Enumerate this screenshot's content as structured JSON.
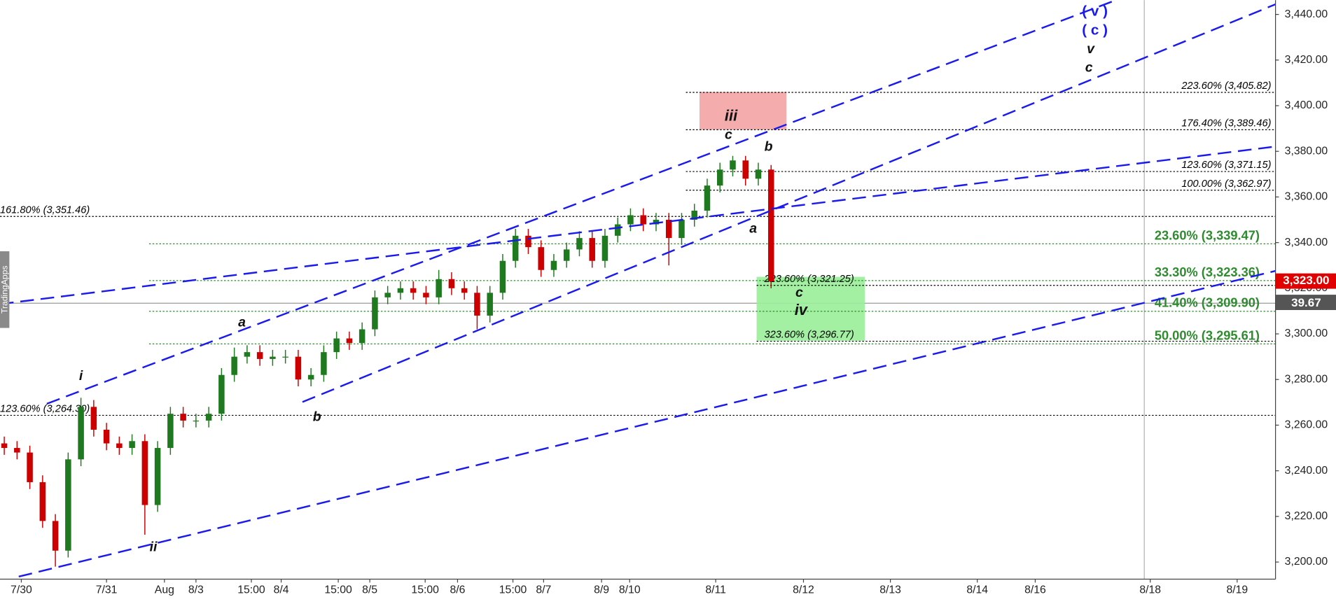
{
  "chart_data": {
    "type": "candlestick",
    "up_color": "#1f7a1f",
    "down_color": "#cc0000",
    "open": [
      3252,
      3250,
      3248,
      3235,
      3218,
      3205,
      3245,
      3268,
      3258,
      3252,
      3250,
      3253,
      3225,
      3250,
      3265,
      3262,
      3262,
      3265,
      3282,
      3290,
      3292,
      3289,
      3290,
      3290,
      3280,
      3282,
      3292,
      3298,
      3296,
      3302,
      3316,
      3318,
      3320,
      3318,
      3316,
      3324,
      3320,
      3318,
      3308,
      3318,
      3332,
      3343,
      3338,
      3328,
      3332,
      3337,
      3342,
      3332,
      3343,
      3348,
      3352,
      3348,
      3350,
      3342,
      3350,
      3354,
      3365,
      3372,
      3376,
      3368,
      3372
    ],
    "high": [
      3255,
      3253,
      3251,
      3238,
      3221,
      3248,
      3272,
      3271,
      3261,
      3255,
      3256,
      3256,
      3253,
      3268,
      3268,
      3265,
      3268,
      3285,
      3294,
      3295,
      3295,
      3293,
      3293,
      3293,
      3285,
      3295,
      3301,
      3301,
      3305,
      3319,
      3321,
      3323,
      3323,
      3321,
      3328,
      3327,
      3323,
      3321,
      3321,
      3335,
      3346,
      3346,
      3341,
      3335,
      3340,
      3345,
      3345,
      3346,
      3351,
      3355,
      3355,
      3353,
      3353,
      3353,
      3357,
      3368,
      3375,
      3378,
      3378,
      3375,
      3374
    ],
    "low": [
      3247,
      3245,
      3232,
      3215,
      3198,
      3202,
      3242,
      3255,
      3249,
      3247,
      3247,
      3212,
      3222,
      3247,
      3259,
      3259,
      3259,
      3262,
      3279,
      3287,
      3286,
      3286,
      3287,
      3277,
      3277,
      3279,
      3289,
      3293,
      3293,
      3299,
      3313,
      3315,
      3315,
      3313,
      3313,
      3317,
      3315,
      3302,
      3305,
      3315,
      3329,
      3335,
      3325,
      3325,
      3329,
      3334,
      3329,
      3329,
      3340,
      3345,
      3345,
      3345,
      3330,
      3339,
      3347,
      3351,
      3362,
      3369,
      3365,
      3365,
      3320
    ],
    "close": [
      3250,
      3248,
      3235,
      3218,
      3205,
      3245,
      3268,
      3258,
      3252,
      3250,
      3253,
      3225,
      3250,
      3265,
      3262,
      3262,
      3265,
      3282,
      3290,
      3292,
      3289,
      3290,
      3290,
      3280,
      3282,
      3292,
      3298,
      3296,
      3302,
      3316,
      3318,
      3320,
      3318,
      3316,
      3324,
      3320,
      3318,
      3308,
      3318,
      3332,
      3343,
      3338,
      3328,
      3332,
      3337,
      3342,
      3332,
      3343,
      3348,
      3352,
      3348,
      3350,
      3342,
      3350,
      3354,
      3365,
      3372,
      3376,
      3368,
      3372,
      3323
    ],
    "x_labels": [
      "7/30",
      "7/31",
      "Aug",
      "8/3",
      "15:00",
      "8/4",
      "15:00",
      "8/5",
      "15:00",
      "8/6",
      "15:00",
      "8/7",
      "8/9",
      "8/10",
      "8/11",
      "8/12",
      "8/13",
      "8/14",
      "8/16",
      "8/18",
      "8/19"
    ],
    "ylim": [
      3192.5,
      3446.3
    ],
    "yticks": [
      {
        "value": 3200,
        "label": "3,200.00"
      },
      {
        "value": 3220,
        "label": "3,220.00"
      },
      {
        "value": 3240,
        "label": "3,240.00"
      },
      {
        "value": 3260,
        "label": "3,260.00"
      },
      {
        "value": 3280,
        "label": "3,280.00"
      },
      {
        "value": 3300,
        "label": "3,300.00"
      },
      {
        "value": 3320,
        "label": "3,320.00"
      },
      {
        "value": 3340,
        "label": "3,340.00"
      },
      {
        "value": 3360,
        "label": "3,360.00"
      },
      {
        "value": 3380,
        "label": "3,380.00"
      },
      {
        "value": 3400,
        "label": "3,400.00"
      },
      {
        "value": 3420,
        "label": "3,420.00"
      },
      {
        "value": 3440,
        "label": "3,440.00"
      }
    ],
    "level_color": "#000000",
    "green_level_color": "#2e8b2e",
    "levels_right": [
      {
        "value": 3405.82,
        "label": "223.60% (3,405.82)"
      },
      {
        "value": 3389.46,
        "label": "176.40% (3,389.46)"
      },
      {
        "value": 3371.15,
        "label": "123.60% (3,371.15)"
      },
      {
        "value": 3362.97,
        "label": "100.00% (3,362.97)"
      }
    ],
    "levels_left": [
      {
        "value": 3351.46,
        "label": "161.80% (3,351.46)"
      },
      {
        "value": 3264.3,
        "label": "123.60% (3,264.30)"
      }
    ],
    "levels_box": [
      {
        "value": 3321.25,
        "label": "223.60% (3,321.25)"
      },
      {
        "value": 3296.77,
        "label": "323.60% (3,296.77)"
      }
    ],
    "levels_green": [
      {
        "value": 3339.47,
        "label": "23.60% (3,339.47)"
      },
      {
        "value": 3323.36,
        "label": "33.30% (3,323.36)"
      },
      {
        "value": 3309.9,
        "label": "41.40% (3,309.90)"
      },
      {
        "value": 3295.61,
        "label": "50.00% (3,295.61)"
      }
    ],
    "wave_labels": [
      "i",
      "ii",
      "a",
      "b",
      "iii",
      "c",
      "b",
      "a",
      "c",
      "iv",
      "v",
      "c"
    ],
    "wave_labels_blue": [
      "( v )",
      "( c )"
    ],
    "last_price": {
      "value": 3323.0,
      "label": "3,323.00"
    },
    "countdown": "39.67",
    "side_tab": "TradingApps"
  }
}
